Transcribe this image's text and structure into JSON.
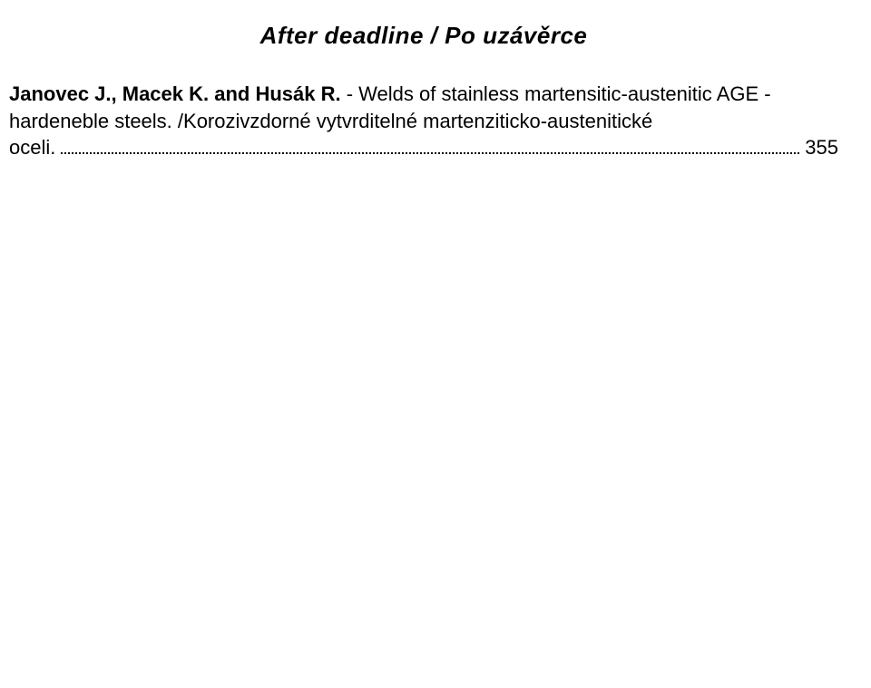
{
  "section_heading": "After deadline / Po uzávěrce",
  "entry": {
    "authors": "Janovec J., Macek K. and Husák R.",
    "title_part1": " - Welds of stainless martensitic-austenitic AGE - hardeneble steels. /Korozivzdorné vytvrditelné martenziticko-austenitické ",
    "title_tail": "oceli.",
    "page": "355"
  }
}
